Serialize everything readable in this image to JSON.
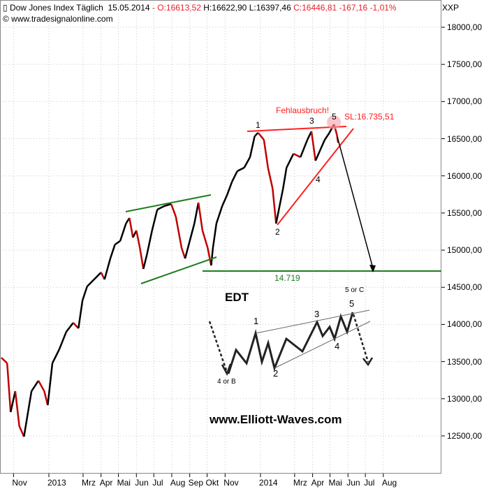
{
  "header": {
    "symbol_icon": "candle-icon",
    "title": "Dow Jones Index Täglich",
    "date": "15.05.2014",
    "sep": "-",
    "open": "O:16613,52",
    "high": "H:16622,90",
    "low": "L:16397,46",
    "close": "C:16446,81",
    "change": "-167,16",
    "change_pct": "-1,01%",
    "source": "© www.tradesignalonline.com",
    "axis_label": "XXP"
  },
  "colors": {
    "up": "#000000",
    "down": "#c00000",
    "red_annot": "#ff2020",
    "green_annot": "#1e7d1e",
    "grid": "#c8c8c8"
  },
  "chart_data": {
    "type": "line",
    "title": "Dow Jones Index Täglich",
    "ylim": [
      12000,
      18300
    ],
    "yticks": [
      "18000,00",
      "17500,00",
      "17000,00",
      "16500,00",
      "16000,00",
      "15500,00",
      "15000,00",
      "14500,00",
      "14000,00",
      "13500,00",
      "13000,00",
      "12500,00"
    ],
    "xticks": [
      {
        "label": "Nov",
        "date": "2012-11-01"
      },
      {
        "label": "2013",
        "date": "2013-01-01"
      },
      {
        "label": "Mrz",
        "date": "2013-03-01"
      },
      {
        "label": "Apr",
        "date": "2013-04-01"
      },
      {
        "label": "Mai",
        "date": "2013-05-01"
      },
      {
        "label": "Jun",
        "date": "2013-06-01"
      },
      {
        "label": "Jul",
        "date": "2013-07-01"
      },
      {
        "label": "Aug",
        "date": "2013-08-01"
      },
      {
        "label": "Sep",
        "date": "2013-09-01"
      },
      {
        "label": "Okt",
        "date": "2013-10-01"
      },
      {
        "label": "Nov",
        "date": "2013-11-01"
      },
      {
        "label": "2014",
        "date": "2014-01-01"
      },
      {
        "label": "Mrz",
        "date": "2014-03-01"
      },
      {
        "label": "Apr",
        "date": "2014-04-01"
      },
      {
        "label": "Mai",
        "date": "2014-05-01"
      },
      {
        "label": "Jun",
        "date": "2014-06-01"
      },
      {
        "label": "Jul",
        "date": "2014-07-01"
      },
      {
        "label": "Aug",
        "date": "2014-08-01"
      }
    ],
    "grid": true,
    "series": [
      {
        "points": [
          [
            "2012-10-11",
            13553
          ],
          [
            "2012-10-21",
            13478
          ],
          [
            "2012-10-27",
            12820
          ],
          [
            "2012-11-04",
            13102
          ],
          [
            "2012-11-11",
            12631
          ],
          [
            "2012-11-19",
            12490
          ],
          [
            "2012-11-26",
            12820
          ],
          [
            "2012-12-02",
            13102
          ],
          [
            "2012-12-14",
            13243
          ],
          [
            "2012-12-24",
            13102
          ],
          [
            "2012-12-30",
            12914
          ],
          [
            "2013-01-07",
            13478
          ],
          [
            "2013-01-19",
            13666
          ],
          [
            "2013-01-31",
            13901
          ],
          [
            "2013-02-12",
            14023
          ],
          [
            "2013-02-21",
            13948
          ],
          [
            "2013-02-28",
            14324
          ],
          [
            "2013-03-08",
            14512
          ],
          [
            "2013-03-20",
            14606
          ],
          [
            "2013-04-01",
            14700
          ],
          [
            "2013-04-07",
            14606
          ],
          [
            "2013-04-17",
            14888
          ],
          [
            "2013-04-25",
            15076
          ],
          [
            "2013-05-04",
            15123
          ],
          [
            "2013-05-14",
            15358
          ],
          [
            "2013-05-20",
            15433
          ],
          [
            "2013-05-26",
            15170
          ],
          [
            "2013-06-01",
            15264
          ],
          [
            "2013-06-07",
            15029
          ],
          [
            "2013-06-13",
            14747
          ],
          [
            "2013-06-19",
            14935
          ],
          [
            "2013-06-28",
            15264
          ],
          [
            "2013-07-07",
            15546
          ],
          [
            "2013-07-19",
            15593
          ],
          [
            "2013-07-31",
            15621
          ],
          [
            "2013-08-08",
            15452
          ],
          [
            "2013-08-18",
            15029
          ],
          [
            "2013-08-24",
            14888
          ],
          [
            "2013-09-01",
            15123
          ],
          [
            "2013-09-09",
            15358
          ],
          [
            "2013-09-16",
            15640
          ],
          [
            "2013-09-23",
            15264
          ],
          [
            "2013-10-02",
            15029
          ],
          [
            "2013-10-08",
            14794
          ],
          [
            "2013-10-11",
            15029
          ],
          [
            "2013-10-17",
            15358
          ],
          [
            "2013-10-27",
            15593
          ],
          [
            "2013-11-04",
            15734
          ],
          [
            "2013-11-13",
            15922
          ],
          [
            "2013-11-22",
            16063
          ],
          [
            "2013-12-04",
            16110
          ],
          [
            "2013-12-14",
            16251
          ],
          [
            "2013-12-22",
            16533
          ],
          [
            "2013-12-28",
            16580
          ],
          [
            "2014-01-07",
            16486
          ],
          [
            "2014-01-14",
            16110
          ],
          [
            "2014-01-22",
            15828
          ],
          [
            "2014-01-28",
            15358
          ],
          [
            "2014-02-03",
            15593
          ],
          [
            "2014-02-09",
            15828
          ],
          [
            "2014-02-15",
            16110
          ],
          [
            "2014-02-27",
            16298
          ],
          [
            "2014-03-11",
            16251
          ],
          [
            "2014-03-23",
            16486
          ],
          [
            "2014-03-30",
            16599
          ],
          [
            "2014-04-06",
            16204
          ],
          [
            "2014-04-14",
            16345
          ],
          [
            "2014-04-22",
            16486
          ],
          [
            "2014-04-30",
            16580
          ],
          [
            "2014-05-08",
            16693
          ],
          [
            "2014-05-13",
            16550
          ],
          [
            "2014-05-15",
            16446
          ]
        ]
      }
    ],
    "annotations": {
      "target_level": "14.719",
      "false_breakout": "Fehlausbruch!",
      "stop_loss": "SL:16.735,51",
      "wave_labels": [
        "1",
        "2",
        "3",
        "4",
        "5"
      ]
    }
  },
  "inset": {
    "title": "EDT",
    "labels": [
      "1",
      "2",
      "3",
      "4",
      "5"
    ],
    "start_label": "4 or B",
    "end_label": "5 or C",
    "watermark": "www.Elliott-Waves.com"
  }
}
